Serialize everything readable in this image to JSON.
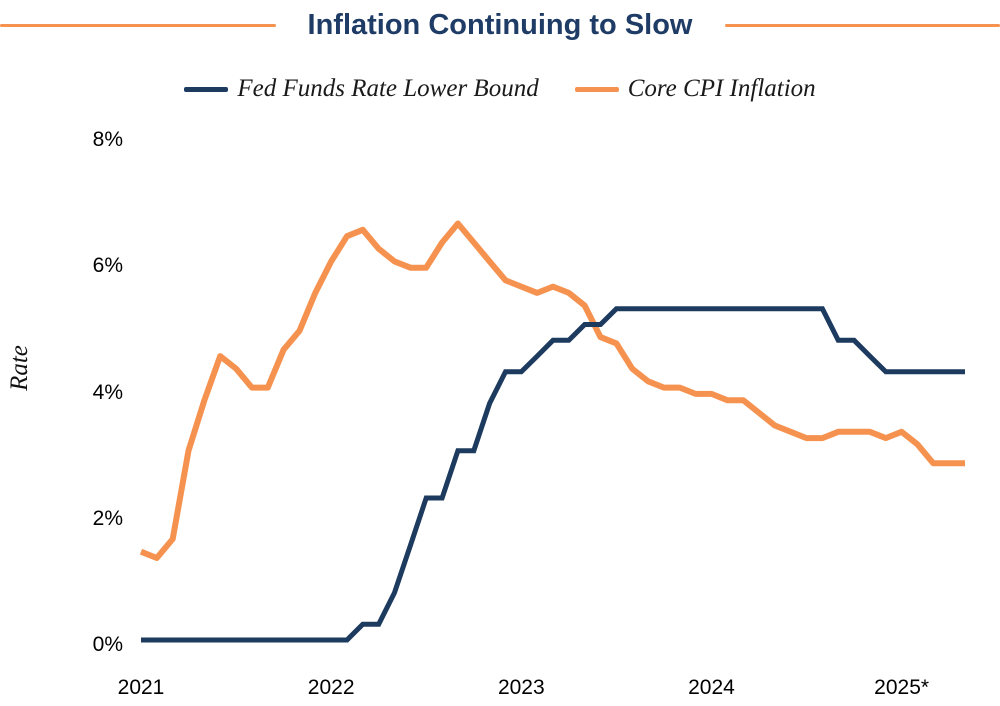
{
  "title": "Inflation Continuing to Slow",
  "colors": {
    "title": "#1f3c66",
    "rule_orange": "#f6924f",
    "navy_line": "#1d3a5f",
    "orange_line": "#f6924f",
    "text": "#1a1a1a"
  },
  "chart_data": {
    "type": "line",
    "title": "Inflation Continuing to Slow",
    "xlabel": "",
    "ylabel": "Rate",
    "ylim": [
      0,
      8
    ],
    "grid": false,
    "legend_position": "top",
    "x_unit": "month",
    "x": [
      "2021-01",
      "2021-02",
      "2021-03",
      "2021-04",
      "2021-05",
      "2021-06",
      "2021-07",
      "2021-08",
      "2021-09",
      "2021-10",
      "2021-11",
      "2021-12",
      "2022-01",
      "2022-02",
      "2022-03",
      "2022-04",
      "2022-05",
      "2022-06",
      "2022-07",
      "2022-08",
      "2022-09",
      "2022-10",
      "2022-11",
      "2022-12",
      "2023-01",
      "2023-02",
      "2023-03",
      "2023-04",
      "2023-05",
      "2023-06",
      "2023-07",
      "2023-08",
      "2023-09",
      "2023-10",
      "2023-11",
      "2023-12",
      "2024-01",
      "2024-02",
      "2024-03",
      "2024-04",
      "2024-05",
      "2024-06",
      "2024-07",
      "2024-08",
      "2024-09",
      "2024-10",
      "2024-11",
      "2024-12",
      "2025-01",
      "2025-02",
      "2025-03",
      "2025-04",
      "2025-05"
    ],
    "series": [
      {
        "name": "Fed Funds Rate Lower Bound",
        "color": "#1d3a5f",
        "values": [
          0,
          0,
          0,
          0,
          0,
          0,
          0,
          0,
          0,
          0,
          0,
          0,
          0,
          0,
          0.25,
          0.25,
          0.75,
          1.5,
          2.25,
          2.25,
          3,
          3,
          3.75,
          4.25,
          4.25,
          4.5,
          4.75,
          4.75,
          5,
          5,
          5.25,
          5.25,
          5.25,
          5.25,
          5.25,
          5.25,
          5.25,
          5.25,
          5.25,
          5.25,
          5.25,
          5.25,
          5.25,
          5.25,
          4.75,
          4.75,
          4.5,
          4.25,
          4.25,
          4.25,
          4.25,
          4.25,
          4.25
        ]
      },
      {
        "name": "Core CPI Inflation",
        "color": "#f6924f",
        "values": [
          1.4,
          1.3,
          1.6,
          3.0,
          3.8,
          4.5,
          4.3,
          4.0,
          4.0,
          4.6,
          4.9,
          5.5,
          6.0,
          6.4,
          6.5,
          6.2,
          6.0,
          5.9,
          5.9,
          6.3,
          6.6,
          6.3,
          6.0,
          5.7,
          5.6,
          5.5,
          5.6,
          5.5,
          5.3,
          4.8,
          4.7,
          4.3,
          4.1,
          4.0,
          4.0,
          3.9,
          3.9,
          3.8,
          3.8,
          3.6,
          3.4,
          3.3,
          3.2,
          3.2,
          3.3,
          3.3,
          3.3,
          3.2,
          3.3,
          3.1,
          2.8,
          2.8,
          2.8
        ]
      }
    ],
    "yticks": [
      {
        "value": 8,
        "label": "8%"
      },
      {
        "value": 6,
        "label": "6%"
      },
      {
        "value": 4,
        "label": "4%"
      },
      {
        "value": 2,
        "label": "2%"
      },
      {
        "value": 0,
        "label": "0%"
      }
    ],
    "xticks": [
      {
        "x_index": 0,
        "label": "2021"
      },
      {
        "x_index": 12,
        "label": "2022"
      },
      {
        "x_index": 24,
        "label": "2023"
      },
      {
        "x_index": 36,
        "label": "2024"
      },
      {
        "x_index": 48,
        "label": "2025*"
      }
    ]
  }
}
